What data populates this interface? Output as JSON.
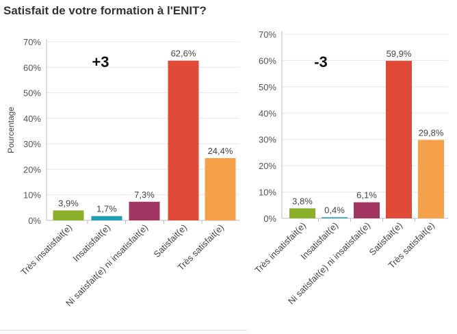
{
  "title": "Satisfait de votre formation à l'ENIT?",
  "chart_data": [
    {
      "type": "bar",
      "categories": [
        "Très insatisfait(e)",
        "Insatisfait(e)",
        "Ni satisfait(e) ni insatisfait(e)",
        "Satisfait(e)",
        "Très satisfait(e)"
      ],
      "values": [
        3.9,
        1.7,
        7.3,
        62.6,
        24.4
      ],
      "value_labels": [
        "3,9%",
        "1,7%",
        "7,3%",
        "62,6%",
        "24,4%"
      ],
      "colors": [
        "#8bb12a",
        "#1f9fb2",
        "#a23563",
        "#e04a36",
        "#f7a04a"
      ],
      "ylabel": "Pourcentage",
      "ylim": [
        0,
        70
      ],
      "yticks": [
        0,
        10,
        20,
        30,
        40,
        50,
        60,
        70
      ],
      "ytick_labels": [
        "0%",
        "10%",
        "20%",
        "30%",
        "40%",
        "50%",
        "60%",
        "70%"
      ],
      "annotation": "+3"
    },
    {
      "type": "bar",
      "categories": [
        "Très insatisfait(e)",
        "Insatisfait(e)",
        "Ni satisfait(e) ni insatisfait(e)",
        "Satisfait(e)",
        "Très satisfait(e)"
      ],
      "values": [
        3.8,
        0.4,
        6.1,
        59.9,
        29.8
      ],
      "value_labels": [
        "3,8%",
        "0,4%",
        "6,1%",
        "59,9%",
        "29,8%"
      ],
      "colors": [
        "#8bb12a",
        "#1f9fb2",
        "#a23563",
        "#e04a36",
        "#f7a04a"
      ],
      "ylabel": "",
      "ylim": [
        0,
        70
      ],
      "yticks": [
        0,
        10,
        20,
        30,
        40,
        50,
        60,
        70
      ],
      "ytick_labels": [
        "0%",
        "10%",
        "20%",
        "30%",
        "40%",
        "50%",
        "60%",
        "70%"
      ],
      "annotation": "-3"
    }
  ]
}
